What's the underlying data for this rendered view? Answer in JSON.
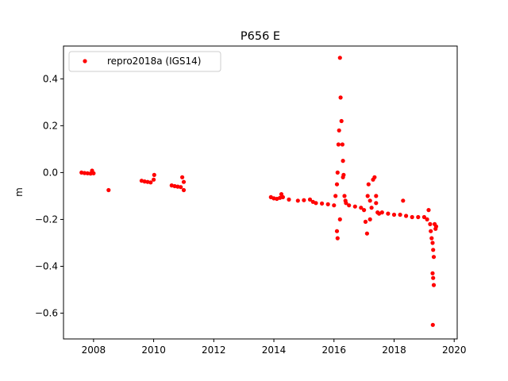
{
  "chart_data": {
    "type": "scatter",
    "title": "P656 E",
    "xlabel": "",
    "ylabel": "m",
    "xlim": [
      2007.0,
      2020.1
    ],
    "ylim": [
      -0.71,
      0.54
    ],
    "xticks": [
      2008,
      2010,
      2012,
      2014,
      2016,
      2018,
      2020
    ],
    "xtick_labels": [
      "2008",
      "2010",
      "2012",
      "2014",
      "2016",
      "2018",
      "2020"
    ],
    "yticks": [
      0.4,
      0.2,
      0.0,
      -0.2,
      -0.4,
      -0.6
    ],
    "ytick_labels": [
      "0.4",
      "0.2",
      "0.0",
      "−0.2",
      "−0.4",
      "−0.6"
    ],
    "grid": false,
    "legend_position": "top-left",
    "series": [
      {
        "name": "repro2018a (IGS14)",
        "color": "#ff0000",
        "marker": "circle",
        "x": [
          2007.6,
          2007.7,
          2007.8,
          2007.9,
          2008.0,
          2007.95,
          2008.5,
          2009.6,
          2009.7,
          2009.8,
          2009.9,
          2010.0,
          2010.02,
          2010.6,
          2010.7,
          2010.8,
          2010.9,
          2011.0,
          2010.95,
          2011.0,
          2013.9,
          2014.0,
          2014.1,
          2014.2,
          2014.3,
          2014.25,
          2014.5,
          2014.8,
          2015.0,
          2015.2,
          2015.3,
          2015.4,
          2015.6,
          2015.8,
          2016.0,
          2016.05,
          2016.1,
          2016.12,
          2016.15,
          2016.17,
          2016.2,
          2016.22,
          2016.25,
          2016.28,
          2016.3,
          2016.32,
          2016.35,
          2016.38,
          2016.4,
          2016.1,
          2016.12,
          2016.2,
          2016.3,
          2016.5,
          2016.7,
          2016.9,
          2017.0,
          2017.05,
          2017.1,
          2017.12,
          2017.15,
          2017.2,
          2017.25,
          2017.3,
          2017.35,
          2017.4,
          2017.45,
          2017.5,
          2017.2,
          2017.4,
          2017.6,
          2017.8,
          2018.0,
          2018.2,
          2018.3,
          2018.4,
          2018.6,
          2018.8,
          2019.0,
          2019.1,
          2019.15,
          2019.2,
          2019.22,
          2019.25,
          2019.28,
          2019.3,
          2019.32,
          2019.35,
          2019.38,
          2019.4,
          2019.28,
          2019.3,
          2019.32,
          2019.29
        ],
        "y": [
          0.0,
          -0.002,
          -0.003,
          -0.004,
          -0.003,
          0.008,
          -0.075,
          -0.035,
          -0.038,
          -0.04,
          -0.042,
          -0.03,
          -0.01,
          -0.055,
          -0.058,
          -0.06,
          -0.062,
          -0.04,
          -0.02,
          -0.075,
          -0.105,
          -0.11,
          -0.112,
          -0.108,
          -0.105,
          -0.092,
          -0.115,
          -0.12,
          -0.118,
          -0.115,
          -0.125,
          -0.13,
          -0.132,
          -0.135,
          -0.14,
          -0.1,
          -0.05,
          0.0,
          0.12,
          0.18,
          0.49,
          0.32,
          0.22,
          0.12,
          0.05,
          -0.01,
          -0.1,
          -0.12,
          -0.13,
          -0.25,
          -0.28,
          -0.2,
          -0.02,
          -0.14,
          -0.145,
          -0.15,
          -0.16,
          -0.21,
          -0.26,
          -0.1,
          -0.05,
          -0.12,
          -0.15,
          -0.03,
          -0.02,
          -0.13,
          -0.17,
          -0.175,
          -0.2,
          -0.1,
          -0.17,
          -0.175,
          -0.18,
          -0.18,
          -0.12,
          -0.185,
          -0.19,
          -0.19,
          -0.19,
          -0.2,
          -0.16,
          -0.22,
          -0.25,
          -0.28,
          -0.3,
          -0.33,
          -0.36,
          -0.22,
          -0.24,
          -0.23,
          -0.43,
          -0.45,
          -0.48,
          -0.65
        ]
      }
    ]
  }
}
